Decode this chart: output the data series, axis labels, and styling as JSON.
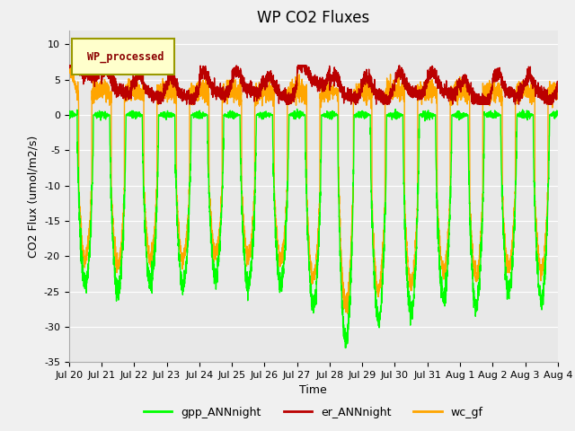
{
  "title": "WP CO2 Fluxes",
  "xlabel": "Time",
  "ylabel_display": "CO2 Flux (umol/m2/s)",
  "ylim": [
    -35,
    12
  ],
  "yticks": [
    -35,
    -30,
    -25,
    -20,
    -15,
    -10,
    -5,
    0,
    5,
    10
  ],
  "legend_label": "WP_processed",
  "line_colors": {
    "gpp": "#00FF00",
    "er": "#BB0000",
    "wc": "#FFA500"
  },
  "line_widths": {
    "gpp": 1.0,
    "er": 1.0,
    "wc": 1.0
  },
  "legend_items": [
    {
      "label": "gpp_ANNnight",
      "color": "#00FF00"
    },
    {
      "label": "er_ANNnight",
      "color": "#BB0000"
    },
    {
      "label": "wc_gf",
      "color": "#FFA500"
    }
  ],
  "bg_color": "#f0f0f0",
  "plot_bg_color": "#e8e8e8",
  "wp_box_color": "#FFFFCC",
  "wp_box_edge_color": "#999900",
  "wp_text_color": "#8B0000",
  "n_days": 15,
  "points_per_day": 288,
  "title_fontsize": 12,
  "axis_label_fontsize": 9,
  "tick_fontsize": 8,
  "legend_fontsize": 9
}
